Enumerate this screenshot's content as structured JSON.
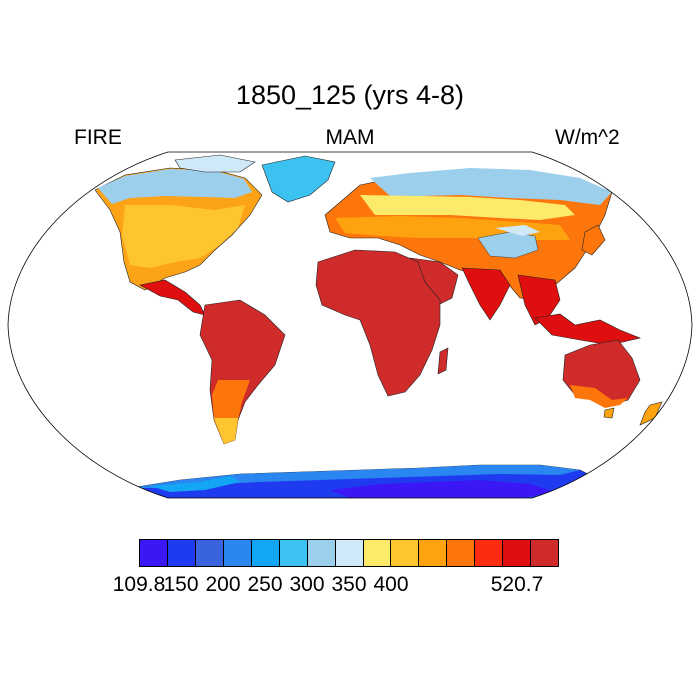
{
  "title": "1850_125 (yrs 4-8)",
  "subtitle_left": "FIRE",
  "subtitle_center": "MAM",
  "subtitle_right": "W/m^2",
  "colorbar": {
    "colors": [
      "#3b17f5",
      "#1f3bf0",
      "#3a63e0",
      "#2a86f0",
      "#12a6f5",
      "#3cc2f0",
      "#9ccfec",
      "#cfe9f8",
      "#fde96a",
      "#fec531",
      "#fea30f",
      "#fd760b",
      "#fb2c0f",
      "#e00f0f",
      "#cf2b2b"
    ],
    "labels": [
      {
        "text": "109.8",
        "boundary": 0
      },
      {
        "text": "150",
        "boundary": 1.5
      },
      {
        "text": "200",
        "boundary": 3
      },
      {
        "text": "250",
        "boundary": 4.5
      },
      {
        "text": "300",
        "boundary": 6
      },
      {
        "text": "350",
        "boundary": 7.5
      },
      {
        "text": "400",
        "boundary": 9
      },
      {
        "text": "520.7",
        "boundary": 13.5
      }
    ]
  }
}
